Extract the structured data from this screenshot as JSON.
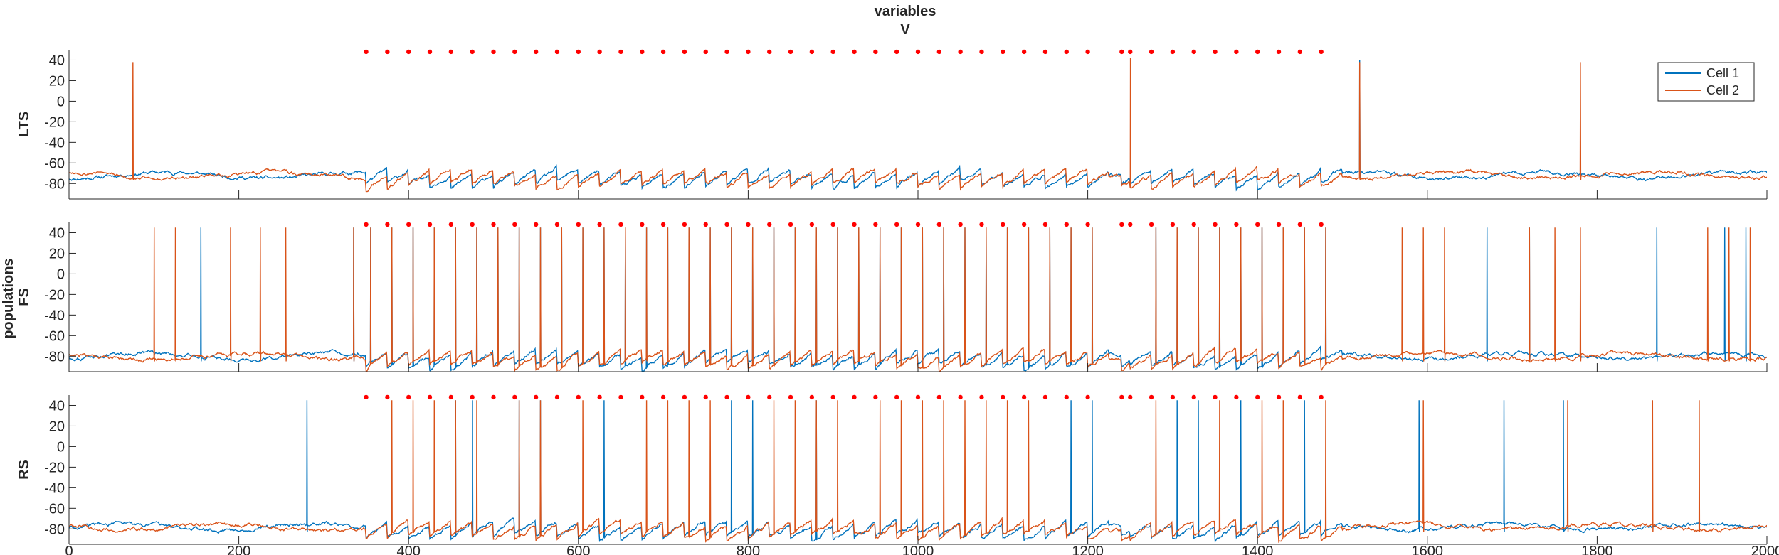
{
  "figure": {
    "title_line1": "variables",
    "title_line2": "V",
    "super_ylabel": "populations"
  },
  "legend": {
    "position": "top-right of first panel",
    "entries": [
      {
        "label": "Cell 1",
        "color": "#0072BD"
      },
      {
        "label": "Cell 2",
        "color": "#D95319"
      }
    ]
  },
  "colors": {
    "cell1": "#0072BD",
    "cell2": "#D95319",
    "markers": "#FF0000",
    "axes": "#262626"
  },
  "chart_data": {
    "type": "line",
    "title": "variables\nV",
    "xlabel": "",
    "xlim": [
      0,
      2000
    ],
    "xticks": [
      0,
      200,
      400,
      600,
      800,
      1000,
      1200,
      1400,
      1600,
      1800,
      2000
    ],
    "ylim": [
      -95,
      50
    ],
    "yticks": [
      -80,
      -60,
      -40,
      -20,
      0,
      20,
      40
    ],
    "grid": false,
    "legend_location": "top-right",
    "marker_y": 48,
    "marker_times": [
      350,
      375,
      400,
      425,
      450,
      475,
      500,
      525,
      550,
      575,
      600,
      625,
      650,
      675,
      700,
      725,
      750,
      775,
      800,
      825,
      850,
      875,
      900,
      925,
      950,
      975,
      1000,
      1025,
      1050,
      1075,
      1100,
      1125,
      1150,
      1175,
      1200,
      1240,
      1250,
      1275,
      1300,
      1325,
      1350,
      1375,
      1400,
      1425,
      1450,
      1475
    ],
    "panels": [
      {
        "ylabel": "LTS",
        "baseline": -72,
        "series": [
          {
            "name": "Cell 1",
            "spike_times": [
              1520
            ],
            "spike_peaks": [
              40
            ]
          },
          {
            "name": "Cell 2",
            "spike_times": [
              75,
              1250,
              1520,
              1780
            ],
            "spike_peaks": [
              38,
              42,
              38,
              38
            ]
          }
        ]
      },
      {
        "ylabel": "FS",
        "baseline": -80,
        "series": [
          {
            "name": "Cell 1",
            "spike_times": [
              155,
              335,
              355,
              380,
              405,
              430,
              455,
              480,
              505,
              530,
              555,
              580,
              605,
              630,
              655,
              680,
              705,
              730,
              755,
              780,
              805,
              830,
              855,
              880,
              905,
              930,
              955,
              980,
              1005,
              1030,
              1055,
              1080,
              1105,
              1130,
              1155,
              1180,
              1205,
              1280,
              1305,
              1330,
              1355,
              1380,
              1405,
              1430,
              1455,
              1480,
              1670,
              1720,
              1870,
              1950,
              1975
            ],
            "spike_peaks": [
              45,
              45,
              45,
              45,
              45,
              45,
              45,
              45,
              45,
              45,
              45,
              45,
              45,
              45,
              45,
              45,
              45,
              45,
              45,
              45,
              45,
              45,
              45,
              45,
              45,
              45,
              45,
              45,
              45,
              45,
              45,
              45,
              45,
              45,
              45,
              45,
              45,
              45,
              45,
              45,
              45,
              45,
              45,
              45,
              45,
              45,
              45,
              45,
              45,
              45,
              45
            ]
          },
          {
            "name": "Cell 2",
            "spike_times": [
              100,
              125,
              190,
              225,
              255,
              335,
              355,
              380,
              405,
              430,
              455,
              480,
              505,
              530,
              555,
              580,
              605,
              630,
              655,
              680,
              705,
              730,
              755,
              780,
              805,
              830,
              855,
              880,
              905,
              930,
              955,
              980,
              1005,
              1030,
              1055,
              1080,
              1105,
              1130,
              1155,
              1180,
              1205,
              1280,
              1305,
              1330,
              1355,
              1380,
              1405,
              1430,
              1455,
              1480,
              1570,
              1595,
              1620,
              1720,
              1750,
              1780,
              1930,
              1955,
              1980
            ],
            "spike_peaks": [
              45,
              45,
              45,
              45,
              45,
              45,
              45,
              45,
              45,
              45,
              45,
              45,
              45,
              45,
              45,
              45,
              45,
              45,
              45,
              45,
              45,
              45,
              45,
              45,
              45,
              45,
              45,
              45,
              45,
              45,
              45,
              45,
              45,
              45,
              45,
              45,
              45,
              45,
              45,
              45,
              45,
              45,
              45,
              45,
              45,
              45,
              45,
              45,
              45,
              45,
              45,
              45,
              45,
              45,
              45,
              45,
              45,
              45,
              45
            ]
          }
        ]
      },
      {
        "ylabel": "RS",
        "baseline": -78,
        "series": [
          {
            "name": "Cell 1",
            "spike_times": [
              280,
              455,
              475,
              530,
              555,
              630,
              780,
              805,
              880,
              1180,
              1205,
              1305,
              1330,
              1380,
              1455,
              1590,
              1690,
              1760
            ],
            "spike_peaks": [
              45,
              45,
              45,
              45,
              45,
              45,
              45,
              45,
              45,
              45,
              45,
              45,
              45,
              45,
              45,
              45,
              45,
              45
            ]
          },
          {
            "name": "Cell 2",
            "spike_times": [
              380,
              405,
              430,
              455,
              480,
              530,
              555,
              605,
              680,
              705,
              730,
              755,
              830,
              855,
              880,
              905,
              955,
              980,
              1005,
              1030,
              1055,
              1080,
              1105,
              1130,
              1280,
              1355,
              1405,
              1430,
              1480,
              1595,
              1765,
              1865,
              1920
            ],
            "spike_peaks": [
              45,
              45,
              45,
              45,
              45,
              45,
              45,
              45,
              45,
              45,
              45,
              45,
              45,
              45,
              45,
              45,
              45,
              45,
              45,
              45,
              45,
              45,
              45,
              45,
              45,
              45,
              45,
              45,
              45,
              45,
              45,
              45,
              45
            ]
          }
        ]
      }
    ]
  }
}
